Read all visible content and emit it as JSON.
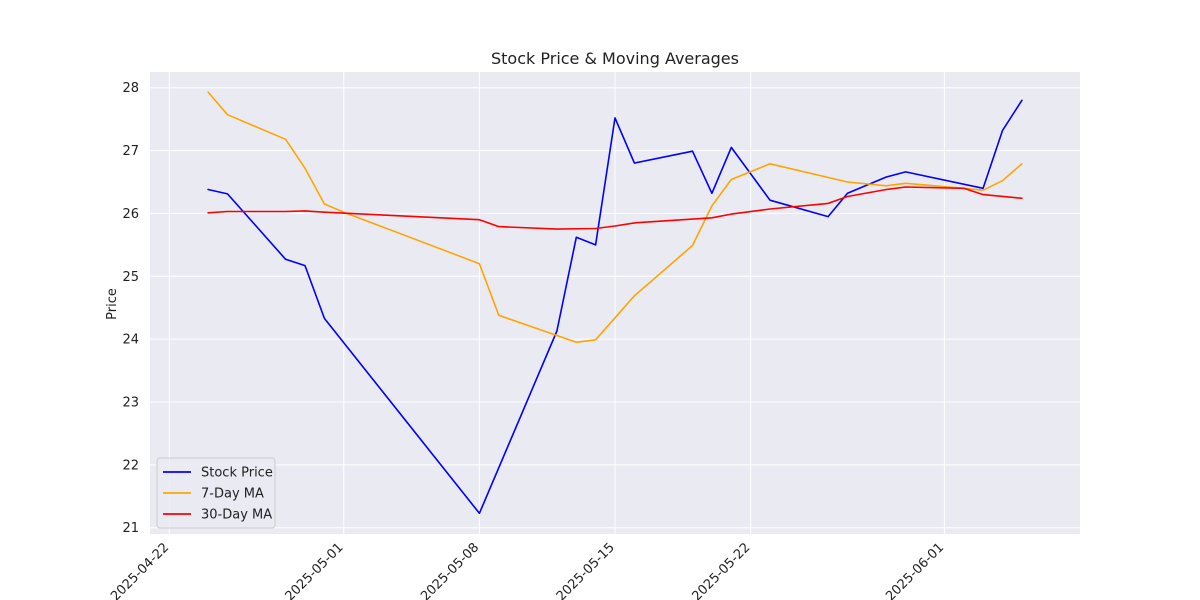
{
  "chart_data": {
    "type": "line",
    "title": "Stock Price & Moving Averages",
    "xlabel": "",
    "ylabel": "Price",
    "x_type": "date",
    "xlim": [
      "2025-04-21",
      "2025-06-08"
    ],
    "ylim": [
      20.9,
      28.25
    ],
    "x_ticks": [
      "2025-04-22",
      "2025-05-01",
      "2025-05-08",
      "2025-05-15",
      "2025-05-22",
      "2025-06-01"
    ],
    "y_ticks": [
      21,
      22,
      23,
      24,
      25,
      26,
      27,
      28
    ],
    "grid": true,
    "legend_position": "lower-left",
    "series": [
      {
        "name": "Stock Price",
        "color": "#0000ff",
        "points": [
          [
            "2025-04-24",
            26.38
          ],
          [
            "2025-04-25",
            26.31
          ],
          [
            "2025-04-28",
            25.27
          ],
          [
            "2025-04-29",
            25.17
          ],
          [
            "2025-04-30",
            24.33
          ],
          [
            "2025-05-08",
            21.23
          ],
          [
            "2025-05-12",
            24.13
          ],
          [
            "2025-05-13",
            25.62
          ],
          [
            "2025-05-14",
            25.5
          ],
          [
            "2025-05-15",
            27.52
          ],
          [
            "2025-05-16",
            26.8
          ],
          [
            "2025-05-19",
            26.99
          ],
          [
            "2025-05-20",
            26.32
          ],
          [
            "2025-05-21",
            27.05
          ],
          [
            "2025-05-23",
            26.21
          ],
          [
            "2025-05-26",
            25.95
          ],
          [
            "2025-05-27",
            26.32
          ],
          [
            "2025-05-29",
            26.58
          ],
          [
            "2025-05-30",
            26.66
          ],
          [
            "2025-06-03",
            26.4
          ],
          [
            "2025-06-04",
            27.32
          ],
          [
            "2025-06-05",
            27.8
          ]
        ]
      },
      {
        "name": "7-Day MA",
        "color": "#ffa500",
        "points": [
          [
            "2025-04-24",
            27.93
          ],
          [
            "2025-04-25",
            27.57
          ],
          [
            "2025-04-28",
            27.18
          ],
          [
            "2025-04-29",
            26.72
          ],
          [
            "2025-04-30",
            26.15
          ],
          [
            "2025-05-01",
            26.02
          ],
          [
            "2025-05-08",
            25.2
          ],
          [
            "2025-05-09",
            24.38
          ],
          [
            "2025-05-13",
            23.95
          ],
          [
            "2025-05-14",
            23.99
          ],
          [
            "2025-05-16",
            24.69
          ],
          [
            "2025-05-19",
            25.49
          ],
          [
            "2025-05-20",
            26.12
          ],
          [
            "2025-05-21",
            26.54
          ],
          [
            "2025-05-23",
            26.79
          ],
          [
            "2025-05-27",
            26.5
          ],
          [
            "2025-05-29",
            26.44
          ],
          [
            "2025-05-30",
            26.48
          ],
          [
            "2025-06-02",
            26.4
          ],
          [
            "2025-06-03",
            26.37
          ],
          [
            "2025-06-04",
            26.52
          ],
          [
            "2025-06-05",
            26.79
          ]
        ]
      },
      {
        "name": "30-Day MA",
        "color": "#ff0000",
        "points": [
          [
            "2025-04-24",
            26.01
          ],
          [
            "2025-04-25",
            26.03
          ],
          [
            "2025-04-28",
            26.03
          ],
          [
            "2025-04-29",
            26.04
          ],
          [
            "2025-04-30",
            26.02
          ],
          [
            "2025-05-08",
            25.9
          ],
          [
            "2025-05-09",
            25.79
          ],
          [
            "2025-05-12",
            25.75
          ],
          [
            "2025-05-14",
            25.76
          ],
          [
            "2025-05-15",
            25.8
          ],
          [
            "2025-05-16",
            25.85
          ],
          [
            "2025-05-20",
            25.93
          ],
          [
            "2025-05-21",
            25.99
          ],
          [
            "2025-05-23",
            26.07
          ],
          [
            "2025-05-26",
            26.16
          ],
          [
            "2025-05-27",
            26.27
          ],
          [
            "2025-05-29",
            26.38
          ],
          [
            "2025-05-30",
            26.42
          ],
          [
            "2025-06-02",
            26.4
          ],
          [
            "2025-06-03",
            26.3
          ],
          [
            "2025-06-05",
            26.24
          ]
        ]
      }
    ]
  }
}
